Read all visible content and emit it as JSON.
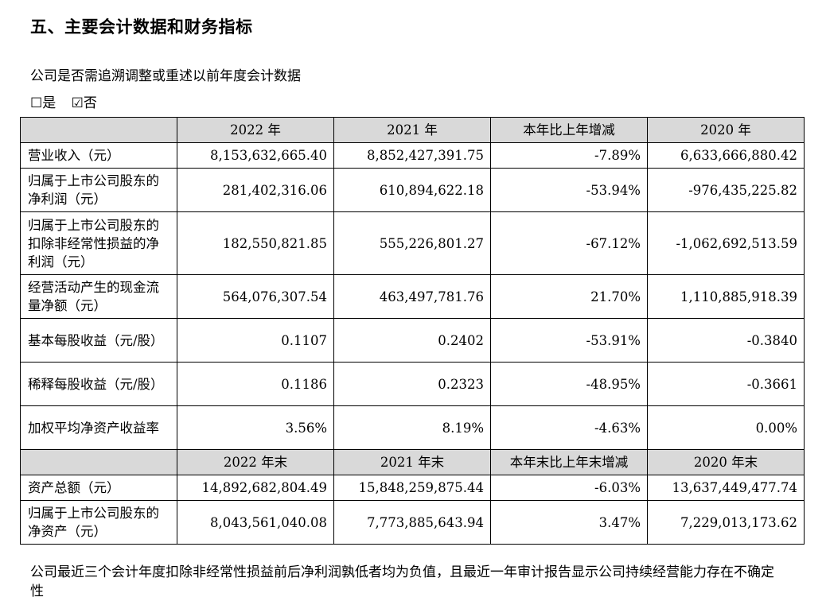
{
  "heading": "五、主要会计数据和财务指标",
  "question": "公司是否需追溯调整或重述以前年度会计数据",
  "options": {
    "yes": "☐是",
    "no": "☑否"
  },
  "table": {
    "header1": [
      "2022 年",
      "2021 年",
      "本年比上年增减",
      "2020 年"
    ],
    "rows1": [
      {
        "label": "营业收入（元）",
        "values": [
          "8,153,632,665.40",
          "8,852,427,391.75",
          "-7.89%",
          "6,633,666,880.42"
        ]
      },
      {
        "label": "归属于上市公司股东的净利润（元）",
        "values": [
          "281,402,316.06",
          "610,894,622.18",
          "-53.94%",
          "-976,435,225.82"
        ]
      },
      {
        "label": "归属于上市公司股东的扣除非经常性损益的净利润（元）",
        "values": [
          "182,550,821.85",
          "555,226,801.27",
          "-67.12%",
          "-1,062,692,513.59"
        ]
      },
      {
        "label": "经营活动产生的现金流量净额（元）",
        "values": [
          "564,076,307.54",
          "463,497,781.76",
          "21.70%",
          "1,110,885,918.39"
        ]
      },
      {
        "label": "基本每股收益（元/股）",
        "values": [
          "0.1107",
          "0.2402",
          "-53.91%",
          "-0.3840"
        ]
      },
      {
        "label": "稀释每股收益（元/股）",
        "values": [
          "0.1186",
          "0.2323",
          "-48.95%",
          "-0.3661"
        ]
      },
      {
        "label": "加权平均净资产收益率",
        "values": [
          "3.56%",
          "8.19%",
          "-4.63%",
          "0.00%"
        ]
      }
    ],
    "header2": [
      "2022 年末",
      "2021 年末",
      "本年末比上年末增减",
      "2020 年末"
    ],
    "rows2": [
      {
        "label": "资产总额（元）",
        "values": [
          "14,892,682,804.49",
          "15,848,259,875.44",
          "-6.03%",
          "13,637,449,477.74"
        ]
      },
      {
        "label": "归属于上市公司股东的净资产（元）",
        "values": [
          "8,043,561,040.08",
          "7,773,885,643.94",
          "3.47%",
          "7,229,013,173.62"
        ]
      }
    ]
  },
  "note": "公司最近三个会计年度扣除非经常性损益前后净利润孰低者均为负值，且最近一年审计报告显示公司持续经营能力存在不确定性"
}
